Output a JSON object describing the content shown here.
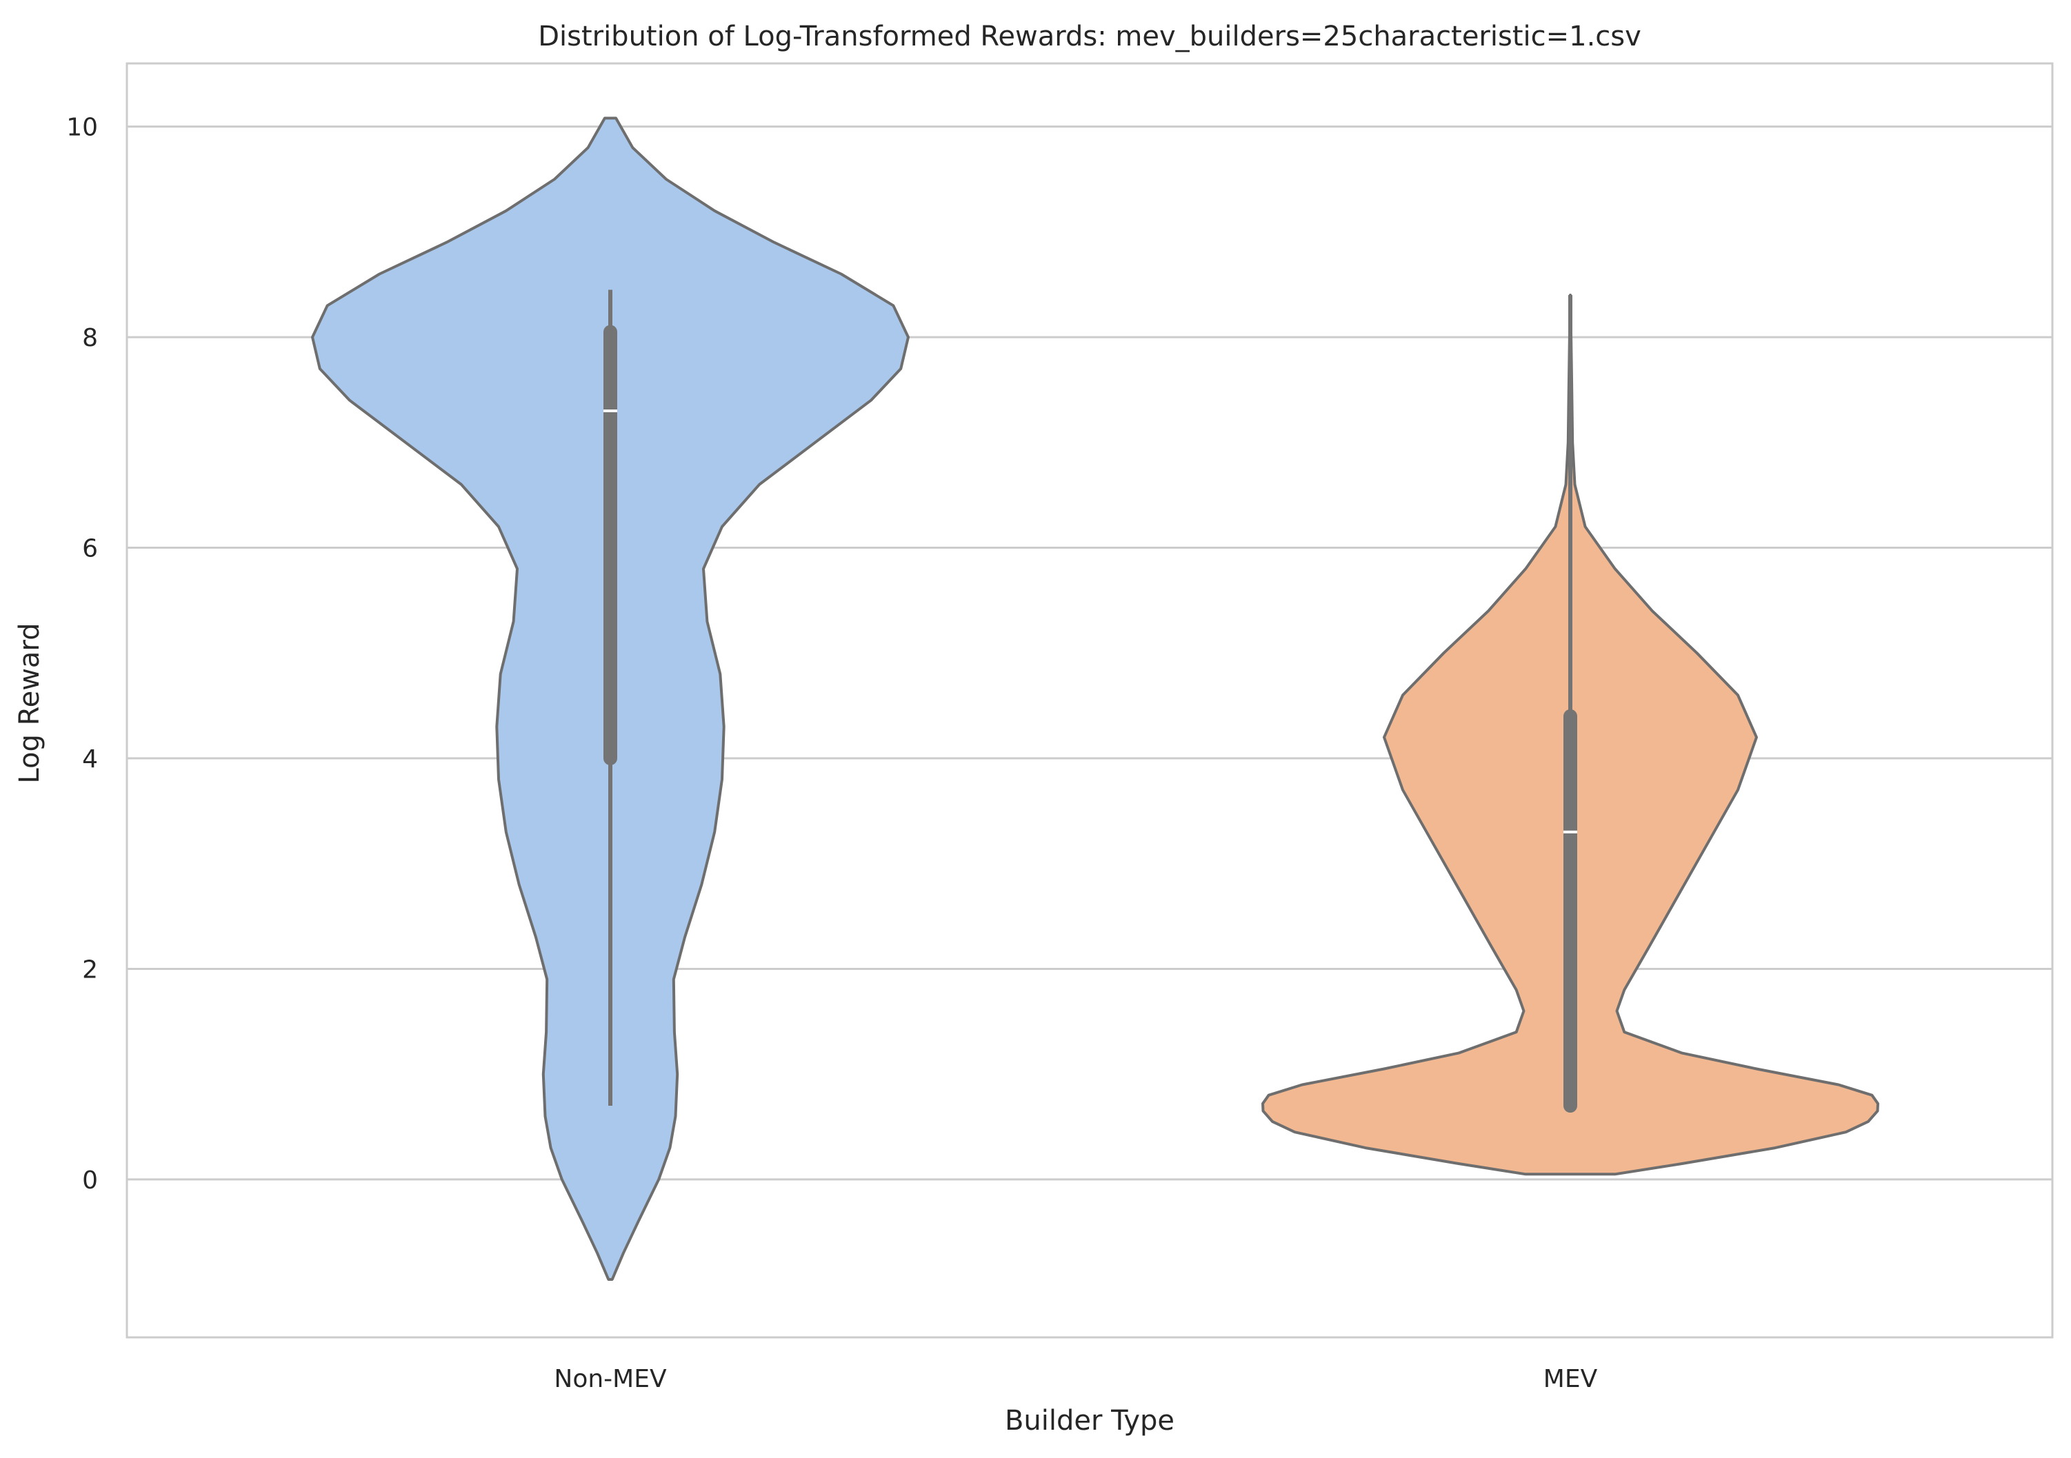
{
  "chart_data": {
    "type": "violin",
    "title": "Distribution of Log-Transformed Rewards: mev_builders=25characteristic=1.csv",
    "xlabel": "Builder Type",
    "ylabel": "Log Reward",
    "ylim": [
      -1.5,
      10.6
    ],
    "yticks": [
      "0",
      "2",
      "4",
      "6",
      "8",
      "10"
    ],
    "grid": "horizontal",
    "categories": [
      "Non-MEV",
      "MEV"
    ],
    "series": [
      {
        "category": "Non-MEV",
        "color": "#a9c8ec",
        "whisker": [
          0.7,
          8.45
        ],
        "quartiles": [
          4.0,
          8.05
        ],
        "median": 7.3,
        "density_y": [
          -0.95,
          -0.7,
          -0.4,
          0.0,
          0.3,
          0.6,
          1.0,
          1.4,
          1.9,
          2.3,
          2.8,
          3.3,
          3.8,
          4.3,
          4.8,
          5.3,
          5.8,
          6.2,
          6.6,
          7.0,
          7.4,
          7.7,
          8.0,
          8.3,
          8.6,
          8.9,
          9.2,
          9.5,
          9.8,
          10.08
        ],
        "density_w": [
          0.005,
          0.035,
          0.075,
          0.13,
          0.16,
          0.175,
          0.18,
          0.172,
          0.17,
          0.2,
          0.245,
          0.28,
          0.3,
          0.305,
          0.295,
          0.26,
          0.25,
          0.3,
          0.4,
          0.55,
          0.7,
          0.78,
          0.8,
          0.76,
          0.62,
          0.44,
          0.28,
          0.15,
          0.06,
          0.015
        ]
      },
      {
        "category": "MEV",
        "color": "#f1b892",
        "whisker": [
          0.7,
          8.4
        ],
        "quartiles": [
          0.7,
          4.4
        ],
        "median": 3.3,
        "density_y": [
          0.05,
          0.15,
          0.3,
          0.45,
          0.55,
          0.65,
          0.72,
          0.8,
          0.9,
          1.05,
          1.2,
          1.4,
          1.6,
          1.8,
          2.2,
          2.7,
          3.2,
          3.7,
          4.2,
          4.6,
          5.0,
          5.4,
          5.8,
          6.2,
          6.6,
          7.0,
          7.5,
          8.0,
          8.4
        ],
        "density_w": [
          0.12,
          0.3,
          0.55,
          0.74,
          0.8,
          0.825,
          0.826,
          0.81,
          0.72,
          0.5,
          0.3,
          0.145,
          0.125,
          0.145,
          0.21,
          0.29,
          0.37,
          0.45,
          0.5,
          0.45,
          0.34,
          0.22,
          0.12,
          0.04,
          0.012,
          0.006,
          0.004,
          0.002,
          0.0
        ]
      }
    ]
  }
}
